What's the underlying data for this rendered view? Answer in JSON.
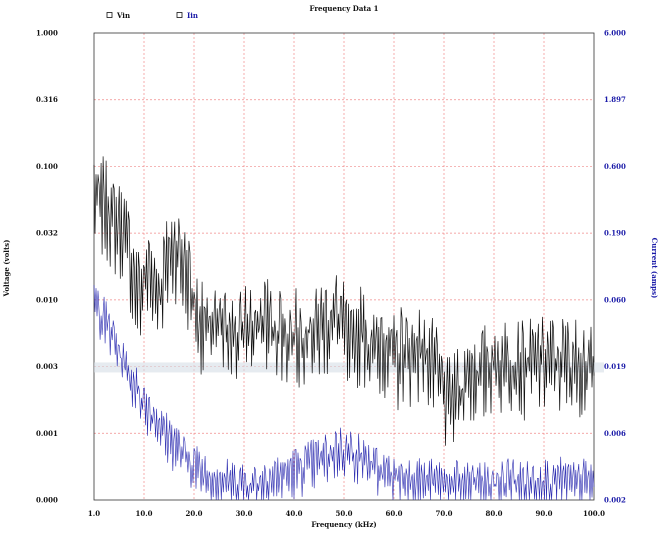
{
  "chart_data": {
    "type": "line",
    "title": "Frequency Data 1",
    "xlabel": "Frequency (kHz)",
    "ylabel_left": "Voltage (volts)",
    "ylabel_right": "Current (amps)",
    "xlim": [
      1.0,
      100.0
    ],
    "x_ticks": [
      "1.0",
      "10.0",
      "20.0",
      "30.0",
      "40.0",
      "50.0",
      "60.0",
      "70.0",
      "80.0",
      "90.0",
      "100.0"
    ],
    "y_left_ticks": [
      "1.000",
      "0.316",
      "0.100",
      "0.032",
      "0.010",
      "0.003",
      "0.001",
      "0.000"
    ],
    "y_right_ticks": [
      "6.000",
      "1.897",
      "0.600",
      "0.190",
      "0.060",
      "0.019",
      "0.006",
      "0.002"
    ],
    "y_scale": "log",
    "grid": true,
    "legend_position": "top-left",
    "cursor_band_value_left": 0.003,
    "series": [
      {
        "name": "Vin",
        "axis": "left",
        "color": "#111111",
        "x": [
          1,
          2,
          3,
          4,
          5,
          6,
          7,
          8,
          9,
          10,
          11,
          12,
          13,
          14,
          15,
          16,
          17,
          18,
          19,
          20,
          21,
          22,
          23,
          24,
          25,
          26,
          27,
          28,
          29,
          30,
          31,
          32,
          33,
          34,
          35,
          36,
          37,
          38,
          39,
          40,
          41,
          42,
          43,
          44,
          45,
          46,
          47,
          48,
          49,
          50,
          51,
          52,
          53,
          54,
          55,
          56,
          57,
          58,
          59,
          60,
          61,
          62,
          63,
          64,
          65,
          66,
          67,
          68,
          69,
          70,
          71,
          72,
          73,
          74,
          75,
          76,
          77,
          78,
          79,
          80,
          81,
          82,
          83,
          84,
          85,
          86,
          87,
          88,
          89,
          90,
          91,
          92,
          93,
          94,
          95,
          96,
          97,
          98,
          99,
          100
        ],
        "values": [
          0.06,
          0.045,
          0.05,
          0.04,
          0.035,
          0.032,
          0.03,
          0.02,
          0.012,
          0.01,
          0.013,
          0.015,
          0.012,
          0.01,
          0.015,
          0.02,
          0.022,
          0.02,
          0.015,
          0.012,
          0.008,
          0.006,
          0.005,
          0.006,
          0.005,
          0.006,
          0.005,
          0.006,
          0.0045,
          0.005,
          0.006,
          0.0055,
          0.005,
          0.006,
          0.007,
          0.0055,
          0.005,
          0.006,
          0.0045,
          0.005,
          0.005,
          0.0045,
          0.0055,
          0.0055,
          0.005,
          0.006,
          0.006,
          0.0065,
          0.007,
          0.0065,
          0.0045,
          0.0035,
          0.0045,
          0.0055,
          0.0045,
          0.004,
          0.0035,
          0.0045,
          0.004,
          0.0035,
          0.003,
          0.004,
          0.0035,
          0.0035,
          0.004,
          0.0035,
          0.0035,
          0.003,
          0.0025,
          0.002,
          0.0015,
          0.0015,
          0.0018,
          0.002,
          0.0025,
          0.0025,
          0.0025,
          0.0025,
          0.003,
          0.003,
          0.0028,
          0.003,
          0.0032,
          0.003,
          0.003,
          0.0028,
          0.003,
          0.003,
          0.0032,
          0.0032,
          0.003,
          0.0032,
          0.003,
          0.0032,
          0.003,
          0.003,
          0.003,
          0.003,
          0.0028,
          0.0026
        ]
      },
      {
        "name": "Iin",
        "axis": "right",
        "color": "#2b2bb0",
        "x": [
          1,
          2,
          3,
          4,
          5,
          6,
          7,
          8,
          9,
          10,
          11,
          12,
          13,
          14,
          15,
          16,
          17,
          18,
          19,
          20,
          21,
          22,
          23,
          24,
          25,
          26,
          27,
          28,
          29,
          30,
          31,
          32,
          33,
          34,
          35,
          36,
          37,
          38,
          39,
          40,
          41,
          42,
          43,
          44,
          45,
          46,
          47,
          48,
          49,
          50,
          51,
          52,
          53,
          54,
          55,
          56,
          57,
          58,
          59,
          60,
          61,
          62,
          63,
          64,
          65,
          66,
          67,
          68,
          69,
          70,
          71,
          72,
          73,
          74,
          75,
          76,
          77,
          78,
          79,
          80,
          81,
          82,
          83,
          84,
          85,
          86,
          87,
          88,
          89,
          90,
          91,
          92,
          93,
          94,
          95,
          96,
          97,
          98,
          99,
          100
        ],
        "values": [
          0.06,
          0.05,
          0.042,
          0.036,
          0.03,
          0.024,
          0.02,
          0.016,
          0.014,
          0.012,
          0.01,
          0.009,
          0.008,
          0.007,
          0.006,
          0.0055,
          0.005,
          0.0045,
          0.004,
          0.0037,
          0.0034,
          0.0031,
          0.003,
          0.0028,
          0.0027,
          0.0027,
          0.0026,
          0.0026,
          0.0025,
          0.0026,
          0.0025,
          0.0025,
          0.0026,
          0.0026,
          0.0027,
          0.0028,
          0.0028,
          0.0029,
          0.003,
          0.0031,
          0.0032,
          0.0033,
          0.0035,
          0.0036,
          0.0037,
          0.0039,
          0.004,
          0.0042,
          0.0045,
          0.0046,
          0.0045,
          0.0043,
          0.0041,
          0.004,
          0.0037,
          0.0035,
          0.0032,
          0.0031,
          0.0029,
          0.0029,
          0.0029,
          0.0028,
          0.0028,
          0.0027,
          0.0027,
          0.0026,
          0.0026,
          0.0026,
          0.0026,
          0.0026,
          0.0026,
          0.0025,
          0.0025,
          0.0025,
          0.0025,
          0.0026,
          0.0026,
          0.0025,
          0.0024,
          0.0025,
          0.0026,
          0.0026,
          0.0027,
          0.0028,
          0.0026,
          0.0025,
          0.0025,
          0.0026,
          0.0027,
          0.0027,
          0.0026,
          0.0026,
          0.0027,
          0.0026,
          0.0026,
          0.0025,
          0.0025,
          0.0026,
          0.0026,
          0.0025
        ]
      }
    ]
  }
}
